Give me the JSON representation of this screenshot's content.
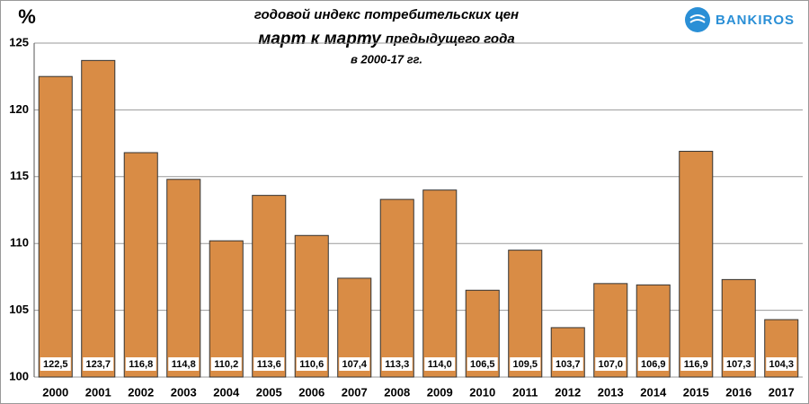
{
  "chart_data": {
    "type": "bar",
    "title": "годовой индекс потребительских цен",
    "subtitle": [
      "март к марту",
      "предыдущего года"
    ],
    "period": "в 2000-17 гг.",
    "y_label": "%",
    "logo": "BANKIROS",
    "categories": [
      "2000",
      "2001",
      "2002",
      "2003",
      "2004",
      "2005",
      "2006",
      "2007",
      "2008",
      "2009",
      "2010",
      "2011",
      "2012",
      "2013",
      "2014",
      "2015",
      "2016",
      "2017"
    ],
    "values": [
      122.5,
      123.7,
      116.8,
      114.8,
      110.2,
      113.6,
      110.6,
      107.4,
      113.3,
      114.0,
      106.5,
      109.5,
      103.7,
      107.0,
      106.9,
      116.9,
      107.3,
      104.3
    ],
    "value_labels": [
      "122,5",
      "123,7",
      "116,8",
      "114,8",
      "110,2",
      "113,6",
      "110,6",
      "107,4",
      "113,3",
      "114,0",
      "106,5",
      "109,5",
      "103,7",
      "107,0",
      "106,9",
      "116,9",
      "107,3",
      "104,3"
    ],
    "color": "#d98c45",
    "ylim": [
      100,
      125
    ],
    "yticks": [
      100,
      105,
      110,
      115,
      120,
      125
    ],
    "grid": true
  }
}
